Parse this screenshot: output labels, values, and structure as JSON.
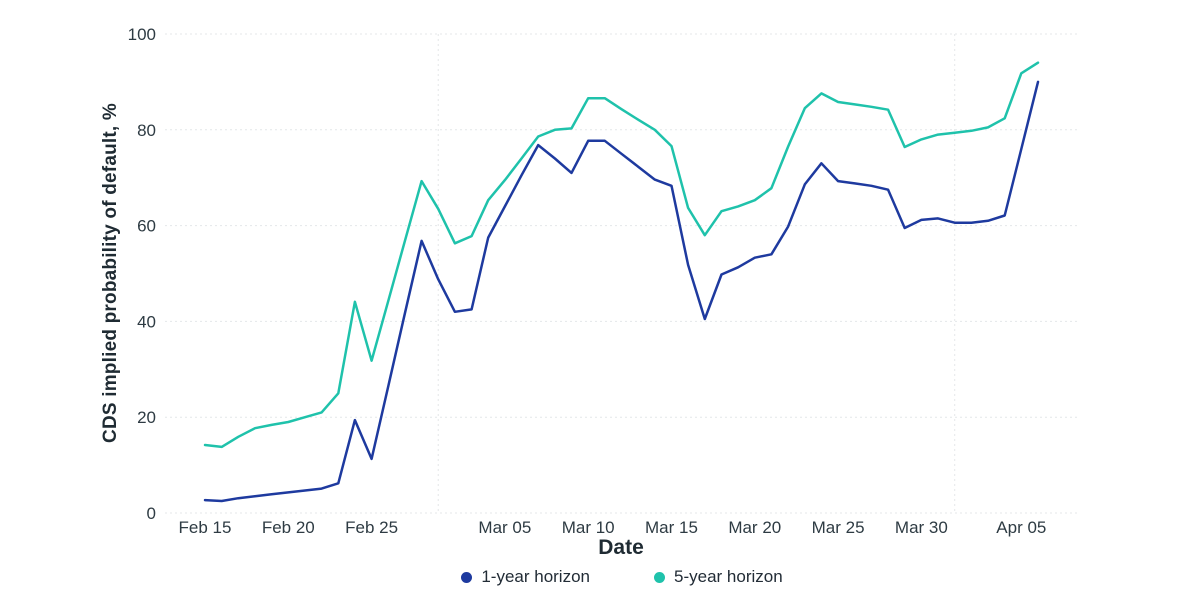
{
  "chart_data": {
    "type": "line",
    "title": "",
    "xlabel": "Date",
    "ylabel": "CDS implied probability of default, %",
    "ylim": [
      0,
      100
    ],
    "y_ticks": [
      0,
      20,
      40,
      60,
      80,
      100
    ],
    "grid": "dashed-light",
    "legend_position": "bottom",
    "x_dates": [
      "Feb 15",
      "Feb 16",
      "Feb 17",
      "Feb 18",
      "Feb 19",
      "Feb 20",
      "Feb 21",
      "Feb 22",
      "Feb 23",
      "Feb 24",
      "Feb 25",
      "Feb 26",
      "Feb 27",
      "Feb 28",
      "Mar 01",
      "Mar 02",
      "Mar 03",
      "Mar 04",
      "Mar 05",
      "Mar 06",
      "Mar 07",
      "Mar 08",
      "Mar 09",
      "Mar 10",
      "Mar 11",
      "Mar 12",
      "Mar 13",
      "Mar 14",
      "Mar 15",
      "Mar 16",
      "Mar 17",
      "Mar 18",
      "Mar 19",
      "Mar 20",
      "Mar 21",
      "Mar 22",
      "Mar 23",
      "Mar 24",
      "Mar 25",
      "Mar 26",
      "Mar 27",
      "Mar 28",
      "Mar 29",
      "Mar 30",
      "Mar 31",
      "Apr 01",
      "Apr 02",
      "Apr 03",
      "Apr 04",
      "Apr 05",
      "Apr 06"
    ],
    "x_ticks": [
      {
        "label": "Feb 15",
        "index": 0
      },
      {
        "label": "Feb 20",
        "index": 5
      },
      {
        "label": "Feb 25",
        "index": 10
      },
      {
        "label": "Mar 05",
        "index": 18
      },
      {
        "label": "Mar 10",
        "index": 23
      },
      {
        "label": "Mar 15",
        "index": 28
      },
      {
        "label": "Mar 20",
        "index": 33
      },
      {
        "label": "Mar 25",
        "index": 38
      },
      {
        "label": "Mar 30",
        "index": 43
      },
      {
        "label": "Apr 05",
        "index": 49
      }
    ],
    "v_gridlines": [
      {
        "label": "Mar 01",
        "index": 14
      },
      {
        "label": "Apr 01",
        "index": 45
      }
    ],
    "series": [
      {
        "name": "1-year horizon",
        "color": "#1e3a9f",
        "values": [
          2.7,
          2.5,
          3.1,
          3.5,
          3.9,
          4.3,
          4.7,
          5.1,
          6.2,
          19.4,
          11.3,
          26.5,
          41.7,
          56.8,
          48.8,
          42.0,
          42.5,
          57.5,
          64.0,
          70.5,
          76.8,
          74.0,
          71.0,
          77.7,
          77.7,
          75.0,
          72.3,
          69.6,
          68.3,
          51.8,
          40.5,
          49.8,
          51.3,
          53.3,
          54.0,
          59.8,
          68.6,
          73.0,
          69.3,
          68.8,
          68.3,
          67.5,
          59.5,
          61.2,
          61.5,
          60.6,
          60.6,
          61.0,
          62.1,
          76.0,
          90.0
        ]
      },
      {
        "name": "5-year horizon",
        "color": "#1fc2ab",
        "values": [
          14.2,
          13.8,
          15.9,
          17.7,
          18.4,
          19.0,
          20.0,
          21.0,
          25.0,
          44.1,
          31.8,
          44.3,
          56.8,
          69.3,
          63.5,
          56.3,
          57.8,
          65.3,
          69.5,
          74.0,
          78.6,
          80.0,
          80.3,
          86.6,
          86.6,
          84.3,
          82.1,
          80.0,
          76.6,
          63.7,
          58.0,
          63.0,
          64.0,
          65.3,
          67.8,
          76.5,
          84.5,
          87.6,
          85.8,
          85.3,
          84.8,
          84.2,
          76.4,
          78.0,
          79.0,
          79.4,
          79.8,
          80.5,
          82.4,
          91.8,
          94.0
        ]
      }
    ]
  },
  "colors": {
    "grid": "#e4e7e9",
    "tick_text": "#2e3b43",
    "title_text": "#1f2b33"
  }
}
